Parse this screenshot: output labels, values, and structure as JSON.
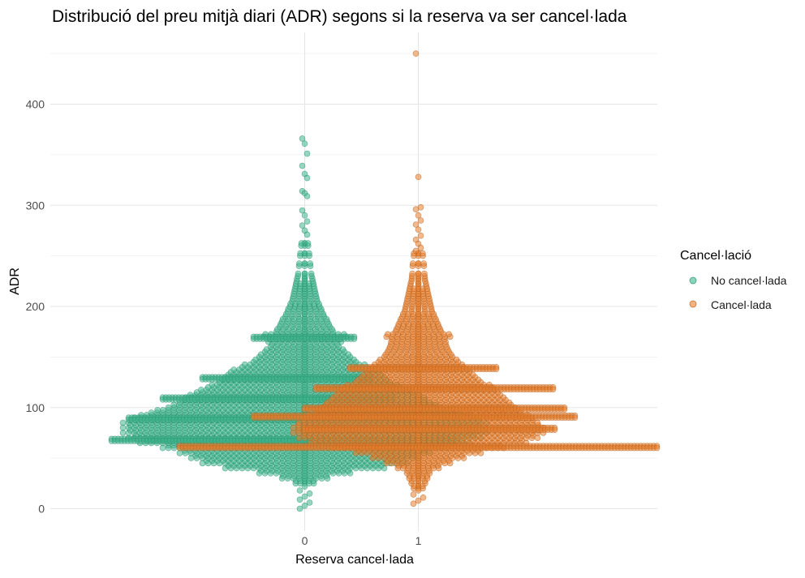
{
  "chart_data": {
    "type": "scatter",
    "subtype": "beeswarm",
    "title": "Distribució del preu mitjà diari (ADR) segons si la reserva va ser cancel·lada",
    "xlabel": "Reserva cancel·lada",
    "ylabel": "ADR",
    "x_categories": [
      "0",
      "1"
    ],
    "ylim": [
      -20,
      450
    ],
    "y_ticks": [
      0,
      100,
      200,
      300,
      400
    ],
    "grid": true,
    "legend": {
      "title": "Cancel·lació",
      "position": "right",
      "entries": [
        {
          "label": "No cancel·lada",
          "color": "#3FB68E"
        },
        {
          "label": "Cancel·lada",
          "color": "#E8802E"
        }
      ]
    },
    "series": [
      {
        "category": "0",
        "color": "#3FB68E",
        "outliers": [
          366,
          361,
          351,
          339,
          331,
          327,
          314,
          312,
          309,
          295,
          290,
          284,
          280,
          275,
          271
        ],
        "lows": [
          0,
          3,
          6,
          9,
          12,
          15,
          18,
          22
        ],
        "mass": [
          {
            "adr": 25,
            "w": 0.08
          },
          {
            "adr": 30,
            "w": 0.2
          },
          {
            "adr": 35,
            "w": 0.4
          },
          {
            "adr": 40,
            "w": 0.7
          },
          {
            "adr": 45,
            "w": 0.9
          },
          {
            "adr": 50,
            "w": 1.0
          },
          {
            "adr": 55,
            "w": 1.1
          },
          {
            "adr": 60,
            "w": 1.25
          },
          {
            "adr": 65,
            "w": 1.45
          },
          {
            "adr": 70,
            "w": 1.55
          },
          {
            "adr": 75,
            "w": 1.6
          },
          {
            "adr": 80,
            "w": 1.6
          },
          {
            "adr": 85,
            "w": 1.6
          },
          {
            "adr": 90,
            "w": 1.5
          },
          {
            "adr": 95,
            "w": 1.35
          },
          {
            "adr": 100,
            "w": 1.2
          },
          {
            "adr": 105,
            "w": 1.1
          },
          {
            "adr": 110,
            "w": 1.05
          },
          {
            "adr": 115,
            "w": 0.95
          },
          {
            "adr": 120,
            "w": 0.85
          },
          {
            "adr": 125,
            "w": 0.75
          },
          {
            "adr": 130,
            "w": 0.7
          },
          {
            "adr": 135,
            "w": 0.65
          },
          {
            "adr": 140,
            "w": 0.55
          },
          {
            "adr": 145,
            "w": 0.45
          },
          {
            "adr": 150,
            "w": 0.4
          },
          {
            "adr": 155,
            "w": 0.35
          },
          {
            "adr": 160,
            "w": 0.3
          },
          {
            "adr": 165,
            "w": 0.32
          },
          {
            "adr": 170,
            "w": 0.36
          },
          {
            "adr": 175,
            "w": 0.25
          },
          {
            "adr": 180,
            "w": 0.22
          },
          {
            "adr": 185,
            "w": 0.2
          },
          {
            "adr": 190,
            "w": 0.17
          },
          {
            "adr": 195,
            "w": 0.15
          },
          {
            "adr": 200,
            "w": 0.13
          },
          {
            "adr": 205,
            "w": 0.11
          },
          {
            "adr": 210,
            "w": 0.1
          },
          {
            "adr": 215,
            "w": 0.09
          },
          {
            "adr": 220,
            "w": 0.08
          },
          {
            "adr": 225,
            "w": 0.07
          },
          {
            "adr": 230,
            "w": 0.06
          },
          {
            "adr": 240,
            "w": 0.05
          },
          {
            "adr": 250,
            "w": 0.04
          },
          {
            "adr": 260,
            "w": 0.03
          }
        ],
        "bands": [
          {
            "adr": 69,
            "left": 1.7,
            "right": 1.35
          },
          {
            "adr": 90,
            "left": 1.55,
            "right": 1.0
          },
          {
            "adr": 110,
            "left": 1.25,
            "right": 0.8
          },
          {
            "adr": 130,
            "left": 0.9,
            "right": 0.6
          },
          {
            "adr": 170,
            "left": 0.45,
            "right": 0.45
          }
        ]
      },
      {
        "category": "1",
        "color": "#E8802E",
        "outliers": [
          450,
          328,
          298,
          296,
          290,
          285,
          281,
          276,
          270,
          266,
          262,
          258,
          255
        ],
        "lows": [
          5,
          8,
          11,
          14,
          18
        ],
        "mass": [
          {
            "adr": 20,
            "w": 0.04
          },
          {
            "adr": 25,
            "w": 0.06
          },
          {
            "adr": 30,
            "w": 0.08
          },
          {
            "adr": 35,
            "w": 0.1
          },
          {
            "adr": 40,
            "w": 0.18
          },
          {
            "adr": 45,
            "w": 0.28
          },
          {
            "adr": 50,
            "w": 0.4
          },
          {
            "adr": 55,
            "w": 0.55
          },
          {
            "adr": 60,
            "w": 0.75
          },
          {
            "adr": 65,
            "w": 0.95
          },
          {
            "adr": 70,
            "w": 1.05
          },
          {
            "adr": 75,
            "w": 1.1
          },
          {
            "adr": 80,
            "w": 1.1
          },
          {
            "adr": 85,
            "w": 1.05
          },
          {
            "adr": 90,
            "w": 1.0
          },
          {
            "adr": 95,
            "w": 0.9
          },
          {
            "adr": 100,
            "w": 0.85
          },
          {
            "adr": 105,
            "w": 0.8
          },
          {
            "adr": 110,
            "w": 0.75
          },
          {
            "adr": 115,
            "w": 0.7
          },
          {
            "adr": 120,
            "w": 0.65
          },
          {
            "adr": 125,
            "w": 0.55
          },
          {
            "adr": 130,
            "w": 0.5
          },
          {
            "adr": 135,
            "w": 0.45
          },
          {
            "adr": 140,
            "w": 0.4
          },
          {
            "adr": 145,
            "w": 0.35
          },
          {
            "adr": 150,
            "w": 0.3
          },
          {
            "adr": 155,
            "w": 0.27
          },
          {
            "adr": 160,
            "w": 0.25
          },
          {
            "adr": 165,
            "w": 0.24
          },
          {
            "adr": 170,
            "w": 0.28
          },
          {
            "adr": 175,
            "w": 0.2
          },
          {
            "adr": 180,
            "w": 0.18
          },
          {
            "adr": 185,
            "w": 0.16
          },
          {
            "adr": 190,
            "w": 0.14
          },
          {
            "adr": 195,
            "w": 0.12
          },
          {
            "adr": 200,
            "w": 0.11
          },
          {
            "adr": 205,
            "w": 0.1
          },
          {
            "adr": 210,
            "w": 0.09
          },
          {
            "adr": 215,
            "w": 0.08
          },
          {
            "adr": 220,
            "w": 0.07
          },
          {
            "adr": 225,
            "w": 0.06
          },
          {
            "adr": 230,
            "w": 0.055
          },
          {
            "adr": 240,
            "w": 0.05
          },
          {
            "adr": 250,
            "w": 0.04
          }
        ],
        "bands": [
          {
            "adr": 62,
            "left": 2.1,
            "right": 2.1
          },
          {
            "adr": 92,
            "left": 1.45,
            "right": 1.4
          },
          {
            "adr": 80,
            "left": 1.0,
            "right": 1.2
          },
          {
            "adr": 100,
            "left": 1.0,
            "right": 1.3
          },
          {
            "adr": 120,
            "left": 0.9,
            "right": 1.2
          },
          {
            "adr": 140,
            "left": 0.6,
            "right": 0.7
          }
        ]
      }
    ]
  }
}
